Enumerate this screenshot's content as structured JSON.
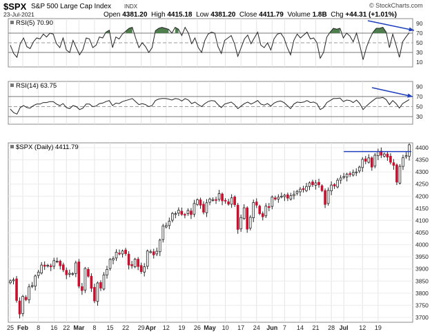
{
  "header": {
    "symbol": "$SPX",
    "name": "S&P 500 Large Cap Index",
    "exchange": "INDX",
    "date": "23-Jul-2021",
    "open_label": "Open",
    "open": "4381.20",
    "high_label": "High",
    "high": "4415.18",
    "low_label": "Low",
    "low": "4381.20",
    "close_label": "Close",
    "close": "4411.79",
    "volume_label": "Volume",
    "volume": "1.8B",
    "chg_label": "Chg",
    "chg": "+44.31 (+1.01%)",
    "brand": "© StockCharts.com"
  },
  "colors": {
    "up_candle": "#ffffff",
    "down_candle": "#c8102e",
    "rsi_overbought_fill": "#4e7d4e",
    "arrow": "#1f3fbf",
    "resistance_line": "#1f3fbf"
  },
  "chart_data": [
    {
      "type": "line",
      "title": "RSI(5) 70.90",
      "yticks": [
        90,
        70,
        50,
        30,
        10
      ],
      "ylim": [
        0,
        100
      ],
      "reference_lines": [
        70,
        50,
        30
      ],
      "series": [
        {
          "name": "RSI(5)",
          "values": [
            45,
            28,
            20,
            48,
            60,
            42,
            38,
            52,
            60,
            58,
            68,
            62,
            70,
            68,
            48,
            40,
            60,
            35,
            30,
            55,
            40,
            25,
            36,
            60,
            58,
            40,
            45,
            62,
            60,
            72,
            76,
            40,
            62,
            58,
            68,
            74,
            80,
            82,
            60,
            40,
            50,
            42,
            30,
            40,
            75,
            80,
            82,
            80,
            78,
            70,
            82,
            78,
            65,
            82,
            70,
            48,
            60,
            40,
            30,
            55,
            68,
            72,
            70,
            42,
            28,
            55,
            60,
            65,
            48,
            22,
            40,
            58,
            66,
            48,
            60,
            72,
            45,
            40,
            50,
            35,
            58,
            68,
            70,
            60,
            40,
            25,
            55,
            68,
            60,
            66,
            72,
            58,
            60,
            50,
            18,
            30,
            62,
            72,
            80,
            78,
            80,
            60,
            70,
            64,
            52,
            70,
            45,
            15,
            40,
            58,
            72,
            80,
            80,
            82,
            72,
            40,
            68,
            45,
            20,
            52,
            62,
            71
          ]
        }
      ],
      "annotations": [
        "blue arrow pointing to latest value (trend)"
      ]
    },
    {
      "type": "line",
      "title": "RSI(14) 63.75",
      "yticks": [
        90,
        70,
        50,
        30
      ],
      "ylim": [
        15,
        100
      ],
      "reference_lines": [
        70,
        50,
        30
      ],
      "series": [
        {
          "name": "RSI(14)",
          "values": [
            45,
            38,
            35,
            48,
            52,
            48,
            47,
            52,
            55,
            55,
            58,
            58,
            60,
            60,
            55,
            52,
            56,
            48,
            46,
            52,
            50,
            44,
            47,
            55,
            55,
            50,
            51,
            56,
            57,
            60,
            62,
            52,
            57,
            56,
            60,
            62,
            64,
            66,
            60,
            54,
            56,
            54,
            50,
            52,
            62,
            65,
            66,
            66,
            65,
            63,
            66,
            65,
            61,
            66,
            63,
            56,
            59,
            54,
            50,
            56,
            60,
            62,
            61,
            54,
            48,
            55,
            57,
            59,
            54,
            46,
            51,
            56,
            59,
            55,
            58,
            62,
            55,
            53,
            56,
            51,
            57,
            60,
            61,
            58,
            52,
            46,
            55,
            59,
            58,
            59,
            62,
            58,
            59,
            56,
            44,
            48,
            58,
            62,
            66,
            66,
            67,
            60,
            63,
            62,
            58,
            63,
            56,
            44,
            51,
            57,
            62,
            67,
            67,
            68,
            64,
            54,
            62,
            56,
            47,
            56,
            60,
            64
          ]
        }
      ],
      "annotations": [
        "blue arrow pointing to latest value (trend)"
      ]
    },
    {
      "type": "candlestick",
      "title": "$SPX (Daily) 4411.79",
      "ylim": [
        3680,
        4420
      ],
      "yticks": [
        4400,
        4350,
        4300,
        4250,
        4200,
        4150,
        4100,
        4050,
        4000,
        3950,
        3900,
        3850,
        3800,
        3750,
        3700
      ],
      "xticks": [
        "25",
        "Feb",
        "8",
        "16",
        "22",
        "Mar",
        "8",
        "15",
        "22",
        "29",
        "Apr",
        "12",
        "19",
        "26",
        "May",
        "10",
        "17",
        "24",
        "Jun",
        "7",
        "14",
        "21",
        "28",
        "Jul",
        "12",
        "19"
      ],
      "series": [
        {
          "name": "$SPX",
          "values": [
            3851,
            3855,
            3770,
            3714,
            3787,
            3773,
            3826,
            3831,
            3871,
            3887,
            3916,
            3911,
            3915,
            3909,
            3934,
            3932,
            3913,
            3896,
            3876,
            3882,
            3881,
            3925,
            3829,
            3811,
            3902,
            3870,
            3820,
            3768,
            3842,
            3821,
            3875,
            3898,
            3939,
            3943,
            3969,
            3962,
            3974,
            3963,
            3916,
            3913,
            3940,
            3910,
            3889,
            3909,
            3974,
            3971,
            3958,
            3973,
            4019,
            4077,
            4079,
            4097,
            4129,
            4128,
            4142,
            4125,
            4124,
            4141,
            4124,
            4170,
            4185,
            4163,
            4134,
            4173,
            4188,
            4186,
            4183,
            4211,
            4181,
            4181,
            4167,
            4193,
            4165,
            4063,
            4112,
            4152,
            4064,
            4113,
            4174,
            4163,
            4128,
            4115,
            4159,
            4156,
            4197,
            4188,
            4196,
            4200,
            4204,
            4192,
            4202,
            4208,
            4220,
            4229,
            4227,
            4240,
            4255,
            4247,
            4255,
            4247,
            4223,
            4166,
            4224,
            4246,
            4242,
            4266,
            4275,
            4281,
            4291,
            4291,
            4298,
            4300,
            4320,
            4352,
            4344,
            4358,
            4320,
            4369,
            4384,
            4369,
            4374,
            4361,
            4340,
            4327,
            4258,
            4323,
            4359,
            4367,
            4412
          ]
        }
      ],
      "annotations": [
        "horizontal resistance line near 4384",
        "latest candle breaks above resistance"
      ]
    }
  ]
}
